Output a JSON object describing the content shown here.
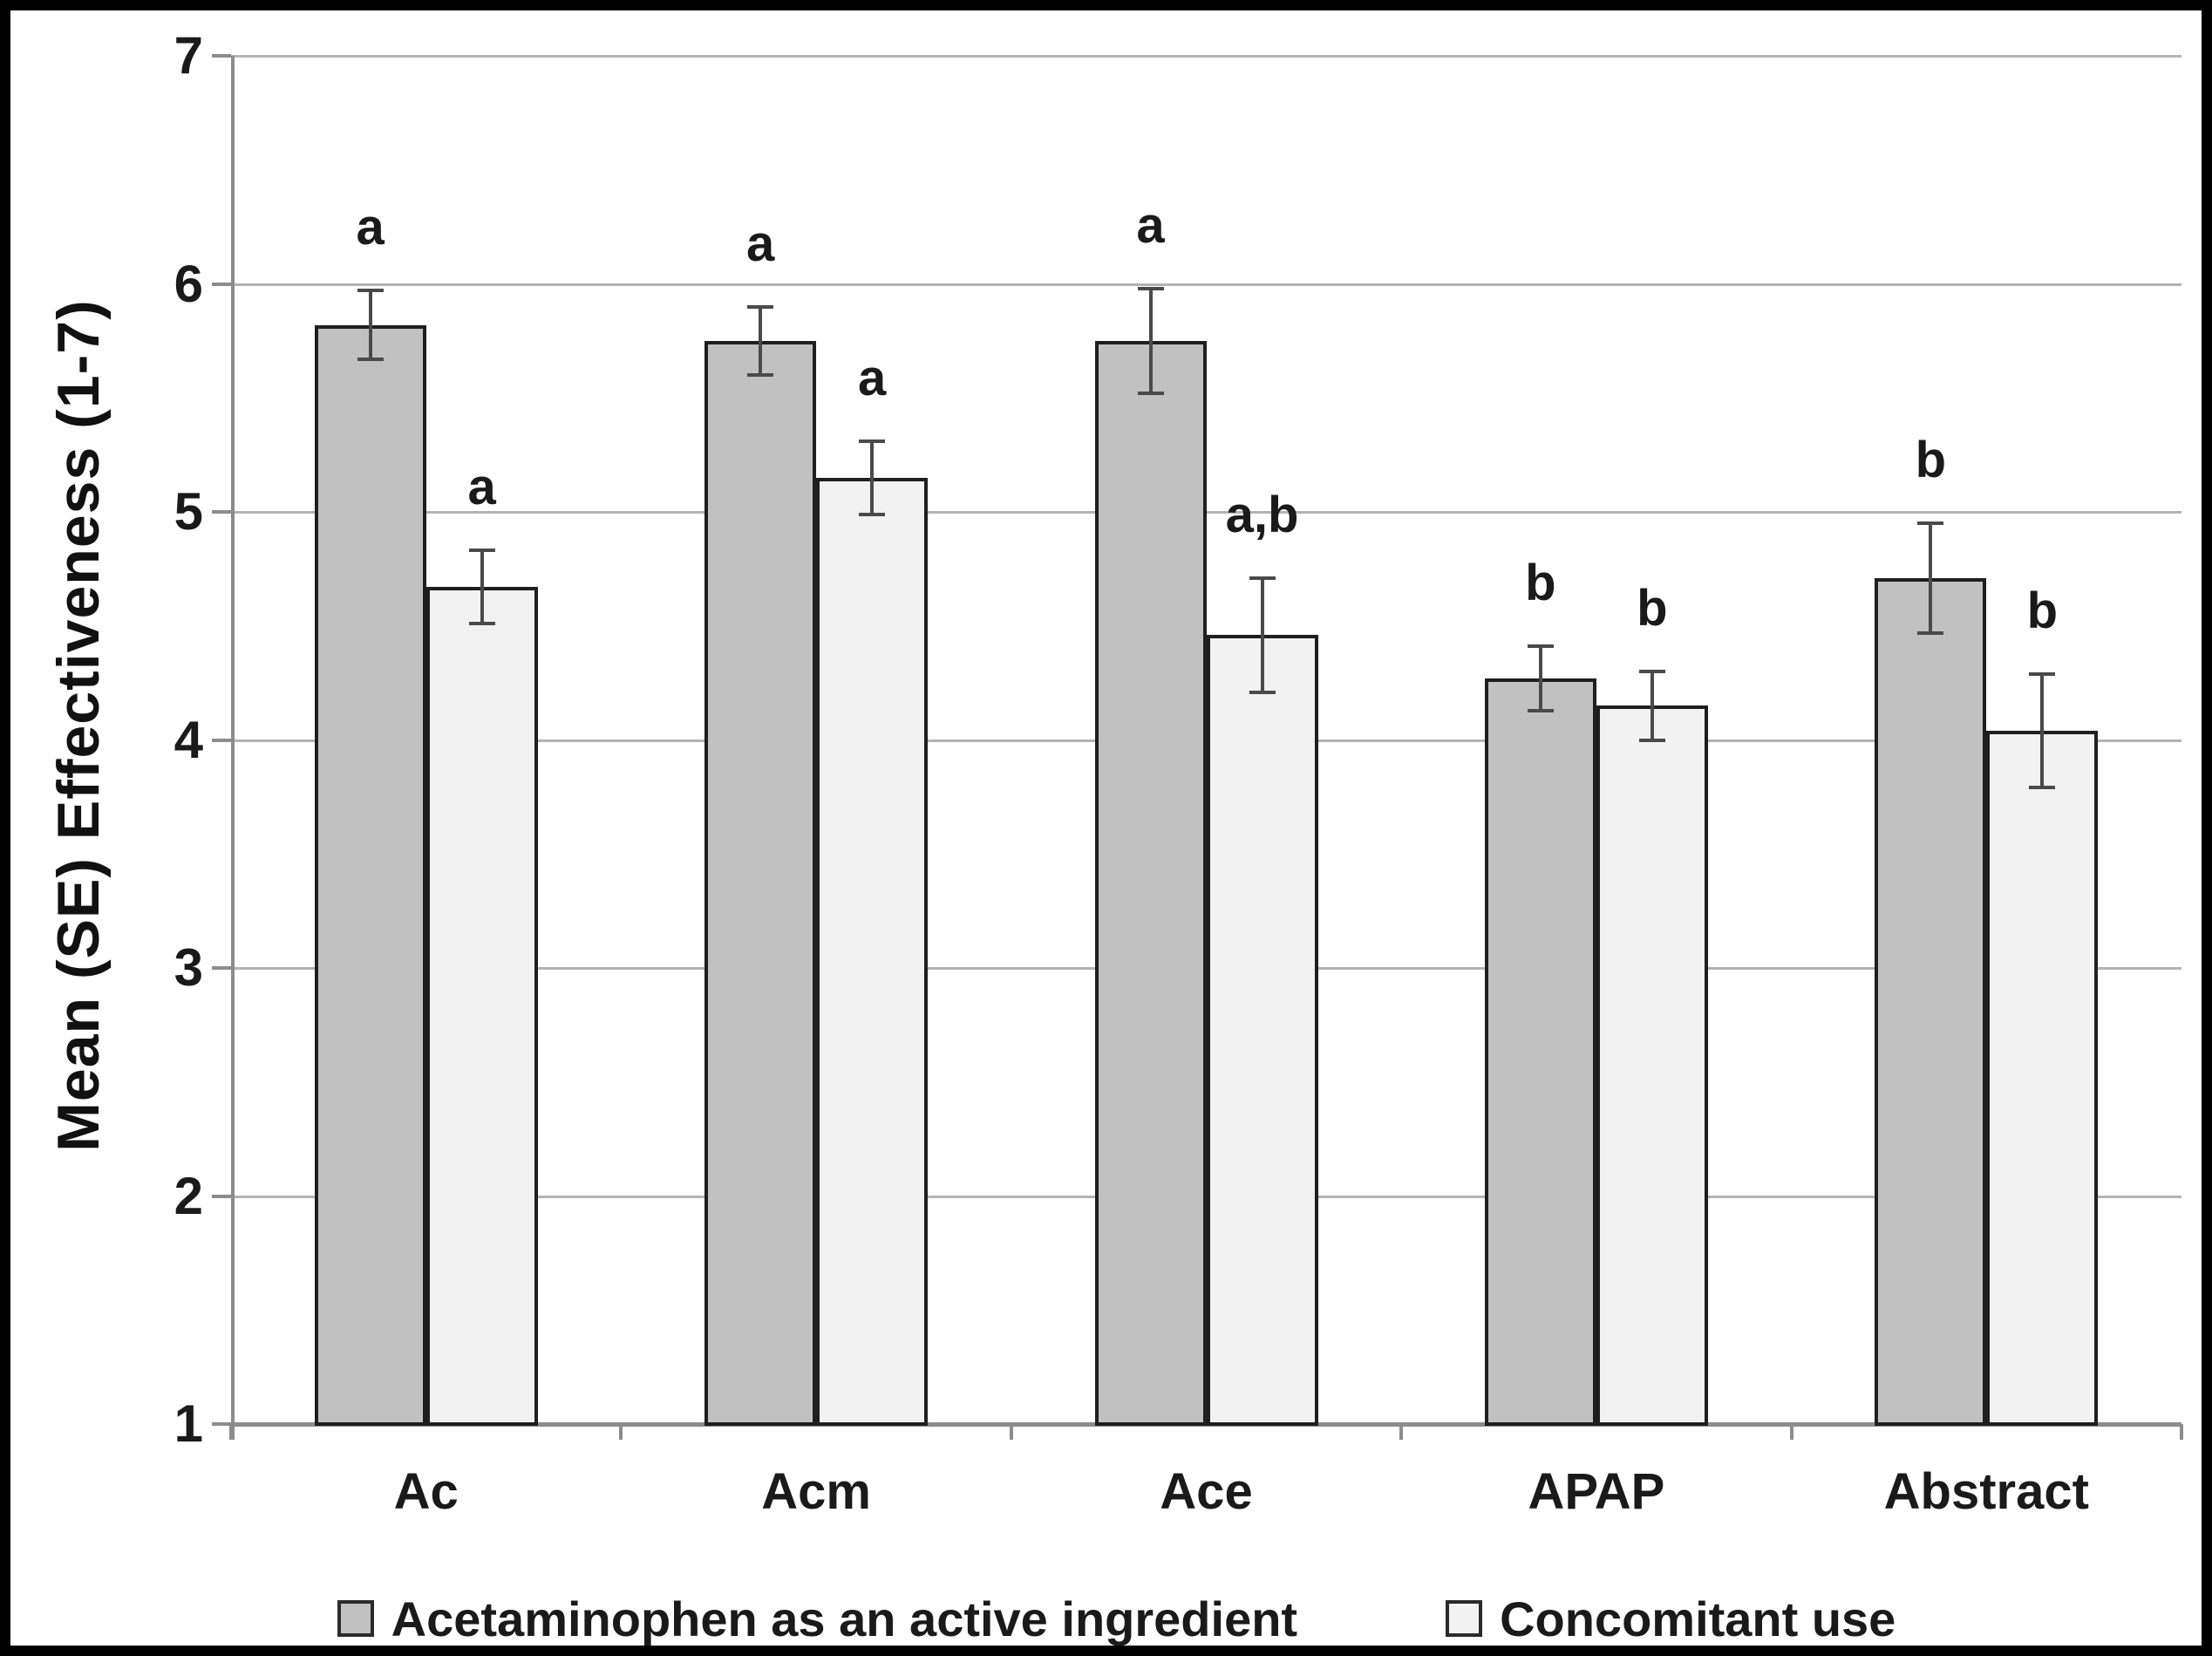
{
  "figure": {
    "ylabel": "Mean (SE) Effectiveness (1-7)"
  },
  "chart_data": {
    "type": "bar",
    "title": "",
    "xlabel": "",
    "ylabel": "Mean (SE) Effectiveness (1-7)",
    "categories": [
      "Ac",
      "Acm",
      "Ace",
      "APAP",
      "Abstract"
    ],
    "series": [
      {
        "name": "Acetaminophen as an active ingredient",
        "color": "#c1c1c1",
        "values": [
          5.82,
          5.75,
          5.75,
          4.27,
          4.71
        ],
        "se": [
          0.15,
          0.15,
          0.23,
          0.14,
          0.24
        ],
        "sig_letters": [
          "a",
          "a",
          "a",
          "b",
          "b"
        ]
      },
      {
        "name": "Concomitant use",
        "color": "#f2f2f2",
        "values": [
          4.67,
          5.15,
          4.46,
          4.15,
          4.04
        ],
        "se": [
          0.16,
          0.16,
          0.25,
          0.15,
          0.25
        ],
        "sig_letters": [
          "a",
          "a",
          "a,b",
          "b",
          "b"
        ]
      }
    ],
    "ylim": [
      1,
      7
    ],
    "yticks": [
      1,
      2,
      3,
      4,
      5,
      6,
      7
    ],
    "grid": true,
    "legend_position": "bottom",
    "error_bars": true,
    "colors": {
      "grid": "#b3b3b3",
      "axis": "#8c8c8c",
      "bar_border": "#1f1f1f",
      "error_bar": "#4a4a4a",
      "text": "#1a1a1a"
    }
  }
}
